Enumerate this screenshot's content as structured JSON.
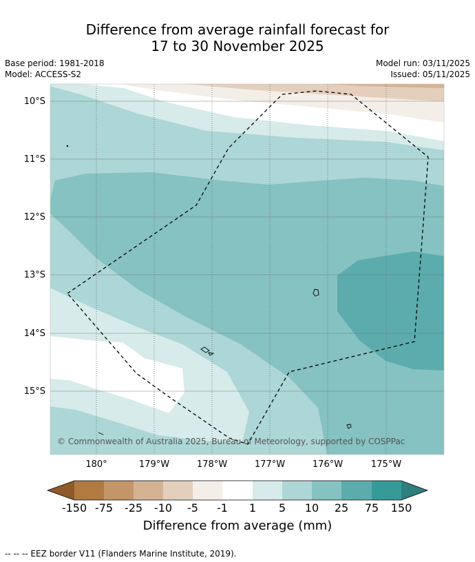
{
  "title": {
    "line1": "Difference from average rainfall forecast for",
    "line2": "17 to 30 November 2025"
  },
  "meta": {
    "base_period": "Base period: 1981-2018",
    "model": "Model: ACCESS-S2",
    "model_run": "Model run: 03/11/2025",
    "issued": "Issued: 05/11/2025"
  },
  "map": {
    "lat_labels": [
      "10°S",
      "11°S",
      "12°S",
      "13°S",
      "14°S",
      "15°S"
    ],
    "lon_labels": [
      "180°",
      "179°W",
      "178°W",
      "177°W",
      "176°W",
      "175°W"
    ],
    "copyright": "© Commonwealth of Australia 2025, Bureau of Meteorology, supported by COSPPac"
  },
  "colorbar": {
    "title": "Difference from average (mm)",
    "tick_labels": [
      "-150",
      "-75",
      "-25",
      "-10",
      "-5",
      "-1",
      "1",
      "5",
      "10",
      "25",
      "75",
      "150"
    ],
    "colors": [
      "#8e5a2a",
      "#b07a40",
      "#c49569",
      "#d4b393",
      "#e4cfbd",
      "#f3eee8",
      "#ffffff",
      "#d6ebea",
      "#add6d6",
      "#85c2c1",
      "#5cacad",
      "#369a98",
      "#2f7e80"
    ]
  },
  "footnote": "-- -- -- EEZ border V11 (Flanders Marine Institute, 2019)."
}
